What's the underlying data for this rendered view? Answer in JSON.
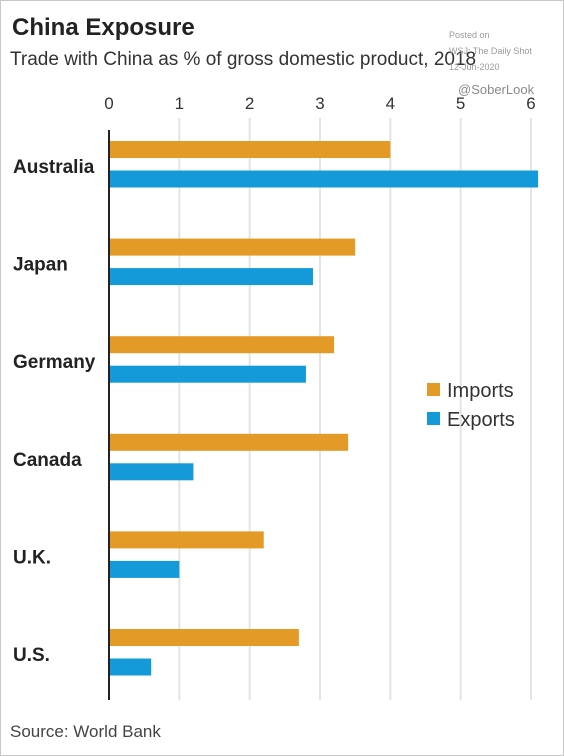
{
  "title": "China Exposure",
  "subtitle": "Trade with China as % of gross domestic product, 2018",
  "watermark": {
    "line1": "Posted on",
    "line2": "WSJ: The Daily Shot",
    "line3": "12-Jun-2020",
    "handle": "@SoberLook"
  },
  "source": "Source: World Bank",
  "colors": {
    "imports": "#e39a26",
    "exports": "#1499d9",
    "grid": "#e4e4e4",
    "axis": "#222222"
  },
  "chart_data": {
    "type": "bar",
    "orientation": "horizontal",
    "title": "China Exposure",
    "subtitle": "Trade with China as % of gross domestic product, 2018",
    "categories": [
      "Australia",
      "Japan",
      "Germany",
      "Canada",
      "U.K.",
      "U.S."
    ],
    "series": [
      {
        "name": "Imports",
        "values": [
          4.0,
          3.5,
          3.2,
          3.4,
          2.2,
          2.7
        ]
      },
      {
        "name": "Exports",
        "values": [
          6.1,
          2.9,
          2.8,
          1.2,
          1.0,
          0.6
        ]
      }
    ],
    "xlim": [
      0,
      6
    ],
    "xticks": [
      0,
      1,
      2,
      3,
      4,
      5,
      6
    ],
    "grid": true,
    "legend_position": "right"
  }
}
